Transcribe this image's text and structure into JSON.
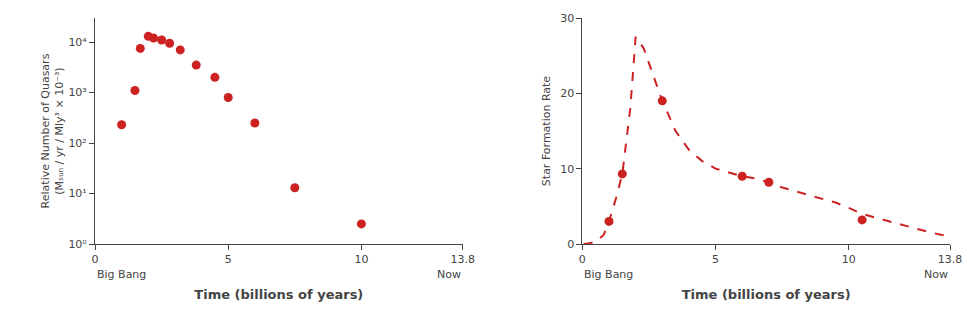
{
  "chart_data": [
    {
      "type": "scatter",
      "xlabel": "Time (billions of years)",
      "ylabel": "Relative Number of Quasars\n(Mₛᵤₙ / yr / Mly³ × 10⁻³)",
      "x": [
        1.0,
        1.5,
        1.7,
        2.0,
        2.2,
        2.5,
        2.8,
        3.2,
        3.8,
        4.5,
        5.0,
        6.0,
        7.5,
        10.0
      ],
      "values": [
        230,
        1100,
        7500,
        13000,
        12000,
        11000,
        9500,
        7000,
        3500,
        2000,
        800,
        250,
        13,
        2.5
      ],
      "color": "#cc2222",
      "marker": "circle",
      "log": "y",
      "xlim": [
        0,
        13.8
      ],
      "xticks": [
        0,
        5,
        10,
        13.8
      ],
      "ylim": [
        1,
        30000
      ],
      "yticks": [
        {
          "value": 1,
          "label": "10⁰"
        },
        {
          "value": 10,
          "label": "10¹"
        },
        {
          "value": 100,
          "label": "10²"
        },
        {
          "value": 1000,
          "label": "10³"
        },
        {
          "value": 10000,
          "label": "10⁴"
        }
      ],
      "grid": false,
      "annotations": [
        {
          "text": "Big Bang",
          "x": 0
        },
        {
          "text": "Now",
          "x": 13.8
        }
      ]
    },
    {
      "type": "line",
      "xlabel": "Time (billions of years)",
      "ylabel": "Star Formation Rate",
      "series": [
        {
          "type": "line",
          "color": "#cc2222",
          "line_style": "dashed",
          "x": [
            0.05,
            0.2,
            0.5,
            0.8,
            1.0,
            1.3,
            1.5,
            1.8,
            2.0,
            2.3,
            2.6,
            3.0,
            3.5,
            4.0,
            4.5,
            5.0,
            5.5,
            6.0,
            6.5,
            7.0,
            7.5,
            8.0,
            8.5,
            9.0,
            9.5,
            10.0,
            10.5,
            11.0,
            11.5,
            12.0,
            12.5,
            13.0,
            13.5,
            13.8
          ],
          "values": [
            0.0,
            0.05,
            0.3,
            1.2,
            3.0,
            6.5,
            9.3,
            18.0,
            27.5,
            26.0,
            23.0,
            19.0,
            15.0,
            12.5,
            11.0,
            10.0,
            9.5,
            9.0,
            8.7,
            8.2,
            7.5,
            7.0,
            6.5,
            6.0,
            5.5,
            4.8,
            4.0,
            3.5,
            3.0,
            2.5,
            2.0,
            1.6,
            1.2,
            1.0
          ]
        },
        {
          "type": "scatter",
          "color": "#cc2222",
          "marker": "circle",
          "x": [
            1.0,
            1.5,
            3.0,
            6.0,
            7.0,
            10.5
          ],
          "values": [
            3.0,
            9.3,
            19.0,
            9.0,
            8.2,
            3.2
          ]
        }
      ],
      "xlim": [
        0,
        13.8
      ],
      "xticks": [
        0,
        5,
        10,
        13.8
      ],
      "ylim": [
        0,
        30
      ],
      "yticks": [
        0,
        10,
        20,
        30
      ],
      "grid": false,
      "annotations": [
        {
          "text": "Big Bang",
          "x": 0
        },
        {
          "text": "Now",
          "x": 13.8
        }
      ]
    }
  ]
}
